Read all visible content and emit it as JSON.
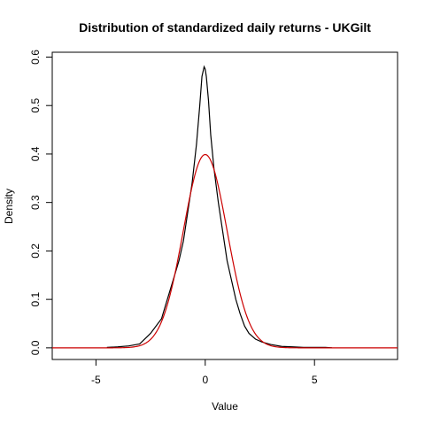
{
  "chart_data": {
    "type": "line",
    "title": "Distribution of standardized daily returns - UKGilt",
    "xlabel": "Value",
    "ylabel": "Density",
    "xlim": [
      -7.0,
      8.8
    ],
    "ylim": [
      -0.024,
      0.61
    ],
    "xticks": [
      -5,
      0,
      5
    ],
    "yticks": [
      0.0,
      0.1,
      0.2,
      0.3,
      0.4,
      0.5,
      0.6
    ],
    "ytick_labels": [
      "0.0",
      "0.1",
      "0.2",
      "0.3",
      "0.4",
      "0.5",
      "0.6"
    ],
    "grid": false,
    "series": [
      {
        "color": "#000000",
        "x": [
          -4.5,
          -4.0,
          -3.5,
          -3.0,
          -2.5,
          -2.0,
          -1.8,
          -1.6,
          -1.4,
          -1.2,
          -1.0,
          -0.8,
          -0.6,
          -0.4,
          -0.25,
          -0.15,
          -0.05,
          0.0,
          0.05,
          0.15,
          0.25,
          0.4,
          0.6,
          0.8,
          1.0,
          1.2,
          1.4,
          1.6,
          1.8,
          2.0,
          2.3,
          2.6,
          3.0,
          3.5,
          4.0,
          4.5,
          5.0,
          5.5,
          5.8
        ],
        "y": [
          0.001,
          0.002,
          0.004,
          0.008,
          0.03,
          0.06,
          0.09,
          0.12,
          0.15,
          0.18,
          0.22,
          0.28,
          0.34,
          0.42,
          0.5,
          0.56,
          0.58,
          0.575,
          0.56,
          0.51,
          0.44,
          0.37,
          0.3,
          0.24,
          0.18,
          0.14,
          0.1,
          0.07,
          0.045,
          0.03,
          0.018,
          0.012,
          0.007,
          0.003,
          0.002,
          0.001,
          0.001,
          0.001,
          0.0
        ]
      },
      {
        "color": "#cc0000",
        "type": "normal_density",
        "mean": 0,
        "sd": 1
      }
    ]
  }
}
